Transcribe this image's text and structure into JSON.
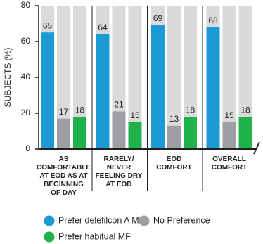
{
  "chart_data": {
    "type": "bar",
    "y_label": "SUBJECTS (%)",
    "categories": [
      [
        "AS",
        "COMFORTABLE",
        "AT EOD AS AT",
        "BEGINNING",
        "OF DAY"
      ],
      [
        "RARELY/",
        "NEVER",
        "FEELING DRY",
        "AT EOD"
      ],
      [
        "EOD",
        "COMFORT"
      ],
      [
        "OVERALL",
        "COMFORT"
      ]
    ],
    "series": [
      {
        "name": "Prefer delefilcon A MF",
        "color": "#1b9ad6",
        "values": [
          65,
          64,
          69,
          68
        ]
      },
      {
        "name": "No Preference",
        "color": "#9d9fa2",
        "values": [
          17,
          21,
          13,
          15
        ]
      },
      {
        "name": "Prefer habitual MF",
        "color": "#1fb24a",
        "values": [
          18,
          15,
          18,
          18
        ]
      }
    ],
    "ylim": [
      0,
      80
    ],
    "yticks": [
      0,
      20,
      40,
      60,
      80
    ],
    "background_color": "#d9dadb"
  }
}
